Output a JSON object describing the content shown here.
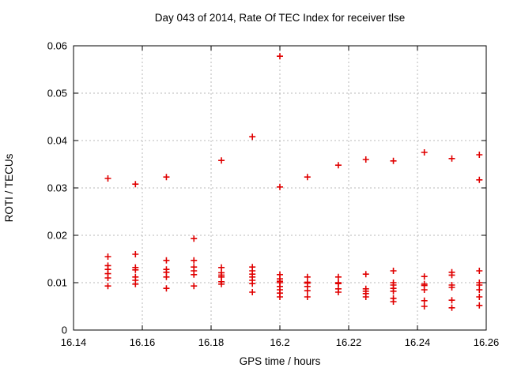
{
  "chart_data": {
    "type": "scatter",
    "title": "Day 043 of 2014, Rate Of TEC Index for receiver tlse",
    "xlabel": "GPS time / hours",
    "ylabel": "ROTI / TECUs",
    "xlim": [
      16.14,
      16.26
    ],
    "ylim": [
      0,
      0.06
    ],
    "xticks": [
      16.14,
      16.16,
      16.18,
      16.2,
      16.22,
      16.24,
      16.26
    ],
    "xtick_labels": [
      "16.14",
      "16.16",
      "16.18",
      "16.2",
      "16.22",
      "16.24",
      "16.26"
    ],
    "yticks": [
      0,
      0.01,
      0.02,
      0.03,
      0.04,
      0.05,
      0.06
    ],
    "ytick_labels": [
      "0",
      "0.01",
      "0.02",
      "0.03",
      "0.04",
      "0.05",
      "0.06"
    ],
    "grid": true,
    "legend": "none",
    "marker": "plus",
    "marker_color": "#e00000",
    "background_color": "#ffffff",
    "series": [
      {
        "name": "ROTI",
        "points": [
          [
            16.15,
            0.032
          ],
          [
            16.15,
            0.0155
          ],
          [
            16.15,
            0.0136
          ],
          [
            16.15,
            0.0128
          ],
          [
            16.15,
            0.0119
          ],
          [
            16.15,
            0.011
          ],
          [
            16.15,
            0.0093
          ],
          [
            16.158,
            0.0308
          ],
          [
            16.158,
            0.016
          ],
          [
            16.158,
            0.0132
          ],
          [
            16.158,
            0.0127
          ],
          [
            16.158,
            0.0112
          ],
          [
            16.158,
            0.0105
          ],
          [
            16.158,
            0.0097
          ],
          [
            16.167,
            0.0323
          ],
          [
            16.167,
            0.0147
          ],
          [
            16.167,
            0.0128
          ],
          [
            16.167,
            0.0122
          ],
          [
            16.167,
            0.0112
          ],
          [
            16.167,
            0.0088
          ],
          [
            16.175,
            0.0193
          ],
          [
            16.175,
            0.0147
          ],
          [
            16.175,
            0.0133
          ],
          [
            16.175,
            0.0125
          ],
          [
            16.175,
            0.0117
          ],
          [
            16.175,
            0.0093
          ],
          [
            16.183,
            0.0358
          ],
          [
            16.183,
            0.0132
          ],
          [
            16.183,
            0.0121
          ],
          [
            16.183,
            0.0116
          ],
          [
            16.183,
            0.0112
          ],
          [
            16.183,
            0.0102
          ],
          [
            16.183,
            0.0097
          ],
          [
            16.192,
            0.0408
          ],
          [
            16.192,
            0.0133
          ],
          [
            16.192,
            0.0125
          ],
          [
            16.192,
            0.0118
          ],
          [
            16.192,
            0.0112
          ],
          [
            16.192,
            0.0105
          ],
          [
            16.192,
            0.0098
          ],
          [
            16.192,
            0.008
          ],
          [
            16.2,
            0.0578
          ],
          [
            16.2,
            0.0302
          ],
          [
            16.2,
            0.0117
          ],
          [
            16.2,
            0.0108
          ],
          [
            16.2,
            0.0103
          ],
          [
            16.2,
            0.01
          ],
          [
            16.2,
            0.0092
          ],
          [
            16.2,
            0.0085
          ],
          [
            16.2,
            0.0078
          ],
          [
            16.2,
            0.007
          ],
          [
            16.208,
            0.0323
          ],
          [
            16.208,
            0.0112
          ],
          [
            16.208,
            0.0101
          ],
          [
            16.208,
            0.0099
          ],
          [
            16.208,
            0.0092
          ],
          [
            16.208,
            0.0083
          ],
          [
            16.208,
            0.007
          ],
          [
            16.217,
            0.0348
          ],
          [
            16.217,
            0.0112
          ],
          [
            16.217,
            0.01
          ],
          [
            16.217,
            0.0098
          ],
          [
            16.217,
            0.0087
          ],
          [
            16.217,
            0.008
          ],
          [
            16.225,
            0.036
          ],
          [
            16.225,
            0.0118
          ],
          [
            16.225,
            0.0087
          ],
          [
            16.225,
            0.0082
          ],
          [
            16.225,
            0.0077
          ],
          [
            16.225,
            0.007
          ],
          [
            16.233,
            0.0357
          ],
          [
            16.233,
            0.0125
          ],
          [
            16.233,
            0.01
          ],
          [
            16.233,
            0.0095
          ],
          [
            16.233,
            0.0088
          ],
          [
            16.233,
            0.0082
          ],
          [
            16.233,
            0.0067
          ],
          [
            16.233,
            0.006
          ],
          [
            16.242,
            0.0375
          ],
          [
            16.242,
            0.0113
          ],
          [
            16.242,
            0.0097
          ],
          [
            16.242,
            0.0094
          ],
          [
            16.242,
            0.0085
          ],
          [
            16.242,
            0.0062
          ],
          [
            16.242,
            0.005
          ],
          [
            16.25,
            0.0362
          ],
          [
            16.25,
            0.0122
          ],
          [
            16.25,
            0.0116
          ],
          [
            16.25,
            0.0095
          ],
          [
            16.25,
            0.009
          ],
          [
            16.25,
            0.0063
          ],
          [
            16.25,
            0.0047
          ],
          [
            16.258,
            0.037
          ],
          [
            16.258,
            0.0317
          ],
          [
            16.258,
            0.0125
          ],
          [
            16.258,
            0.01
          ],
          [
            16.258,
            0.0095
          ],
          [
            16.258,
            0.0085
          ],
          [
            16.258,
            0.007
          ],
          [
            16.258,
            0.0052
          ]
        ]
      }
    ]
  }
}
